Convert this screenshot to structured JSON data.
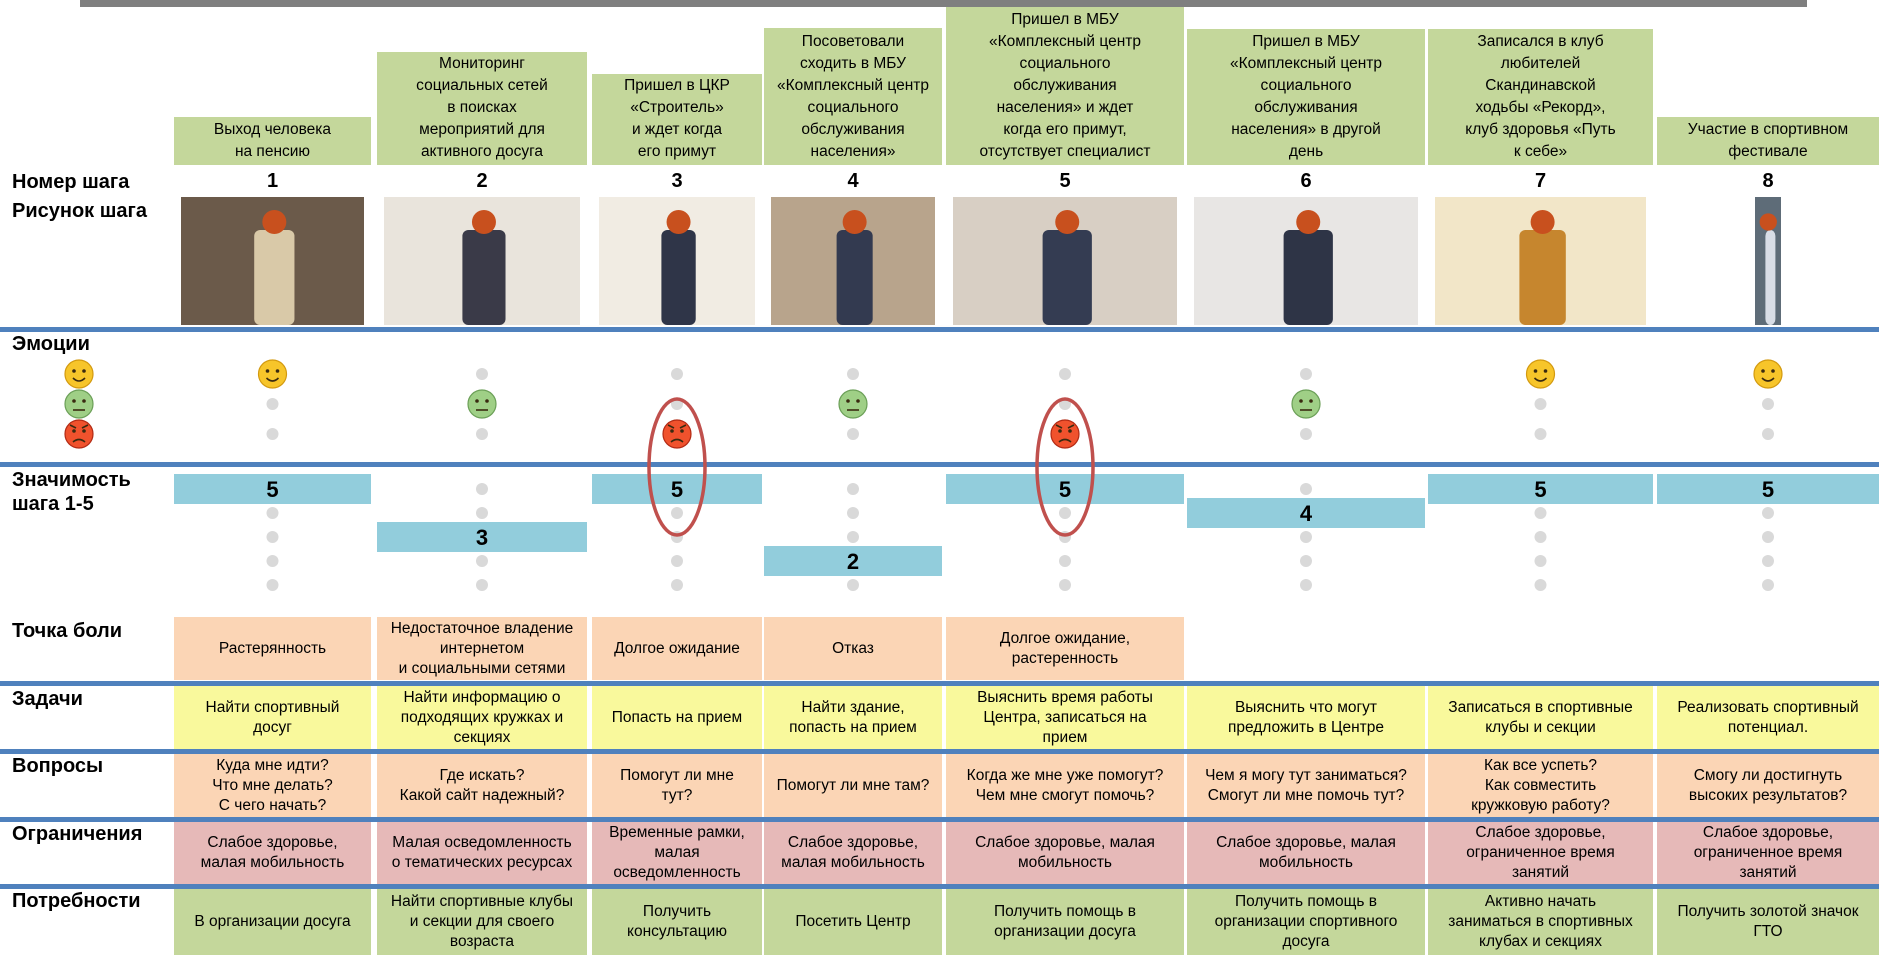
{
  "row_labels": {
    "step_number": "Номер шага",
    "step_image": "Рисунок шага",
    "emotions": "Эмоции",
    "significance": "Значимость\nшага 1-5",
    "pain": "Точка боли",
    "tasks": "Задачи",
    "questions": "Вопросы",
    "limits": "Ограничения",
    "needs": "Потребности"
  },
  "steps": [
    {
      "title": "Выход человека\nна пенсию",
      "number": 1,
      "emotion": 3,
      "significance": 5,
      "pain": "Растерянность",
      "task": "Найти спортивный\nдосуг",
      "question": "Куда мне идти?\nЧто мне делать?\nС чего начать?",
      "limit": "Слабое здоровье,\nмалая мобильность",
      "need": "В организации досуга"
    },
    {
      "title": "Мониторинг\nсоциальных сетей\nв поисках\nмероприятий для\nактивного досуга",
      "number": 2,
      "emotion": 2,
      "significance": 3,
      "pain": "Недостаточное владение\nинтернетом\nи социальными сетями",
      "task": "Найти информацию о\nподходящих кружках и\nсекциях",
      "question": "Где искать?\nКакой сайт надежный?",
      "limit": "Малая осведомленность\nо тематических ресурсах",
      "need": "Найти спортивные клубы\nи секции для своего\nвозраста"
    },
    {
      "title": "Пришел в ЦКР\n«Строитель»\nи ждет когда\nего примут",
      "number": 3,
      "emotion": 1,
      "significance": 5,
      "pain": "Долгое ожидание",
      "task": "Попасть на прием",
      "question": "Помогут ли мне\nтут?",
      "limit": "Временные рамки,\nмалая\nосведомленность",
      "need": "Получить\nконсультацию"
    },
    {
      "title": "Посоветовали\nсходить в МБУ\n«Комплексный центр\nсоциального\nобслуживания\nнаселения»",
      "number": 4,
      "emotion": 2,
      "significance": 2,
      "pain": "Отказ",
      "task": "Найти здание,\nпопасть на прием",
      "question": "Помогут ли мне там?",
      "limit": "Слабое здоровье,\nмалая мобильность",
      "need": "Посетить Центр"
    },
    {
      "title": "Пришел в МБУ\n«Комплексный центр\nсоциального\nобслуживания\nнаселения» и ждет\nкогда его примут,\nотсутствует специалист",
      "number": 5,
      "emotion": 1,
      "significance": 5,
      "pain": "Долгое ожидание,\nрастеренность",
      "task": "Выяснить время работы\nЦентра, записаться на\nприем",
      "question": "Когда же мне уже помогут?\nЧем мне смогут помочь?",
      "limit": "Слабое здоровье, малая\nмобильность",
      "need": "Получить помощь в\nорганизации досуга"
    },
    {
      "title": "Пришел в МБУ\n«Комплексный центр\nсоциального\nобслуживания\nнаселения» в другой\nдень",
      "number": 6,
      "emotion": 2,
      "significance": 4,
      "task": "Выяснить что могут\nпредложить в Центре",
      "question": "Чем я могу тут заниматься?\nСмогут ли мне помочь тут?",
      "limit": "Слабое здоровье, малая\nмобильность",
      "need": "Получить помощь в\nорганизации спортивного\nдосуга"
    },
    {
      "title": "Записался в клуб\nлюбителей\nСкандинавской\nходьбы «Рекорд»,\nклуб здоровья «Путь\nк себе»",
      "number": 7,
      "emotion": 3,
      "significance": 5,
      "task": "Записаться в спортивные\nклубы и секции",
      "question": "Как все успеть?\nКак совместить\nкружковую работу?",
      "limit": "Слабое здоровье,\nограниченное время\nзанятий",
      "need": "Активно начать\nзаниматься в спортивных\nклубах и секциях"
    },
    {
      "title": "Участие в спортивном\nфестивале",
      "number": 8,
      "emotion": 3,
      "significance": 5,
      "task": "Реализовать спортивный\nпотенциал.",
      "question": "Смогу ли достигнуть\nвысоких результатов?",
      "limit": "Слабое здоровье,\nограниченное время\nзанятий",
      "need": "Получить золотой значок\nГТО"
    }
  ]
}
